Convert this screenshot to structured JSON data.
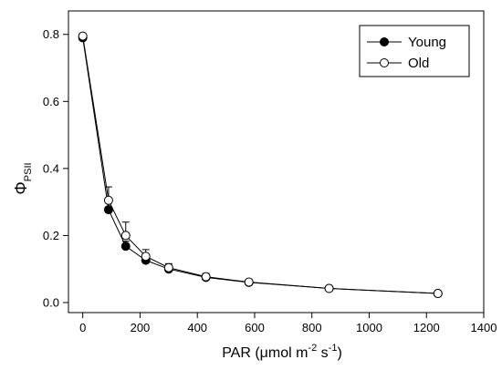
{
  "chart_data": {
    "type": "line",
    "title": "",
    "xlabel": {
      "base": "PAR (",
      "mu": "μ",
      "mid": "mol m",
      "exp1": "-2",
      "mid2": " s",
      "exp2": "-1",
      "end": ")"
    },
    "ylabel": {
      "symbol": "Φ",
      "subscript": "PSII"
    },
    "xlim": [
      -50,
      1400
    ],
    "ylim": [
      -0.03,
      0.87
    ],
    "xticks": [
      0,
      200,
      400,
      600,
      800,
      1000,
      1200,
      1400
    ],
    "yticks": [
      0.0,
      0.2,
      0.4,
      0.6,
      0.8
    ],
    "xtick_labels": [
      "0",
      "200",
      "400",
      "600",
      "800",
      "1000",
      "1200",
      "1400"
    ],
    "ytick_labels": [
      "0.0",
      "0.2",
      "0.4",
      "0.6",
      "0.8"
    ],
    "legend_position": "top-right",
    "series": [
      {
        "name": "Young",
        "marker": "filled-circle",
        "color": "#000000",
        "x": [
          0,
          90,
          150,
          220,
          300,
          430,
          580,
          860,
          1240
        ],
        "y": [
          0.79,
          0.277,
          0.168,
          0.126,
          0.1,
          0.075,
          0.06,
          0.042,
          0.027
        ],
        "err": [
          0.005,
          0.02,
          0.015,
          0.012,
          0.01,
          0.008,
          0.006,
          0.004,
          0.003
        ]
      },
      {
        "name": "Old",
        "marker": "open-circle",
        "color": "#000000",
        "x": [
          0,
          90,
          150,
          220,
          300,
          430,
          580,
          860,
          1240
        ],
        "y": [
          0.795,
          0.305,
          0.2,
          0.138,
          0.104,
          0.077,
          0.061,
          0.042,
          0.027
        ],
        "err": [
          0.005,
          0.04,
          0.04,
          0.02,
          0.012,
          0.01,
          0.007,
          0.004,
          0.003
        ]
      }
    ]
  }
}
